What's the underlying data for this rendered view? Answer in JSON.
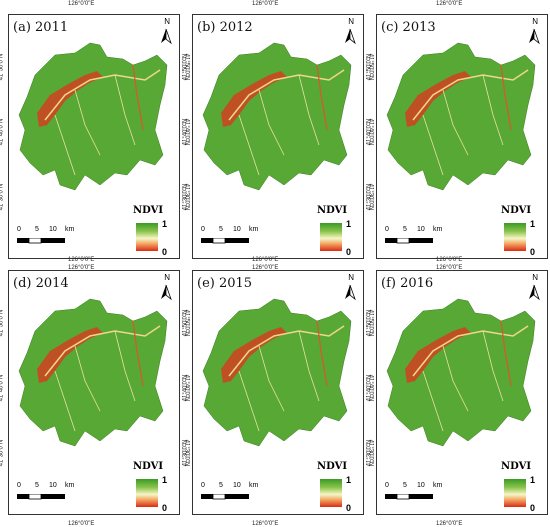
{
  "panels": [
    {
      "label": "(a) 2011"
    },
    {
      "label": "(b) 2012"
    },
    {
      "label": "(c) 2013"
    },
    {
      "label": "(d) 2014"
    },
    {
      "label": "(e)  2015"
    },
    {
      "label": "(f) 2016"
    }
  ],
  "longitude_label": "126°0'0\"E",
  "latitude_labels": [
    "41°50'0\"N",
    "41°40'0\"N",
    "41°30'0\"N"
  ],
  "north_letter": "N",
  "legend": {
    "title": "NDVI",
    "max": "1",
    "min": "0",
    "colors": [
      "#3a9a27",
      "#8bc34a",
      "#f7f6c8",
      "#f1a25e",
      "#d92b17"
    ]
  },
  "scale": {
    "ticks": [
      "0",
      "5",
      "10"
    ],
    "unit": "km"
  }
}
